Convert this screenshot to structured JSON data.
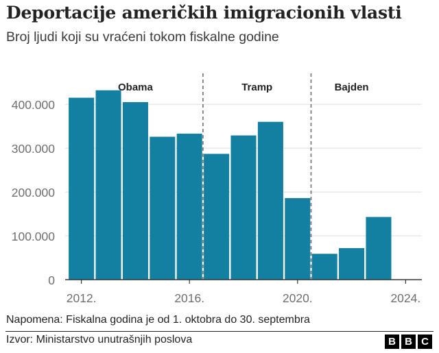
{
  "title": "Deportacije američkih imigracionih vlasti",
  "subtitle": "Broj ljudi koji su vraćeni tokom fiskalne godine",
  "note": "Napomena: Fiskalna godina je od 1. oktobra do 30. septembra",
  "source": "Izvor: Ministarstvo unutrašnjih poslova",
  "logo": [
    "B",
    "B",
    "C"
  ],
  "colors": {
    "bar": "#1380a1",
    "grid": "#dcdcdc",
    "divider": "#6e6e6e",
    "axis": "#333333",
    "tick_text": "#6e6e6e"
  },
  "chart_data": {
    "type": "bar",
    "x": [
      2012,
      2013,
      2014,
      2015,
      2016,
      2017,
      2018,
      2019,
      2020,
      2021,
      2022,
      2023
    ],
    "values": [
      415000,
      432000,
      405000,
      326000,
      333000,
      287000,
      329000,
      360000,
      186000,
      59000,
      72000,
      143000
    ],
    "xlim": [
      2011.4,
      2024.6
    ],
    "ylim": [
      0,
      480000
    ],
    "yticks": [
      0,
      100000,
      200000,
      300000,
      400000
    ],
    "ytick_labels": [
      "0",
      "100.000",
      "200.000",
      "300.000",
      "400.000"
    ],
    "xticks": [
      2012,
      2016,
      2020,
      2024
    ],
    "xtick_labels": [
      "2012.",
      "2016.",
      "2020.",
      "2024."
    ],
    "grid": "horizontal",
    "periods": [
      {
        "label": "Obama",
        "from": 2011.5,
        "to": 2016.5
      },
      {
        "label": "Tramp",
        "from": 2016.5,
        "to": 2020.5
      },
      {
        "label": "Bajden",
        "from": 2020.5,
        "to": 2023.5
      }
    ],
    "dividers": [
      2016.5,
      2020.5
    ]
  }
}
